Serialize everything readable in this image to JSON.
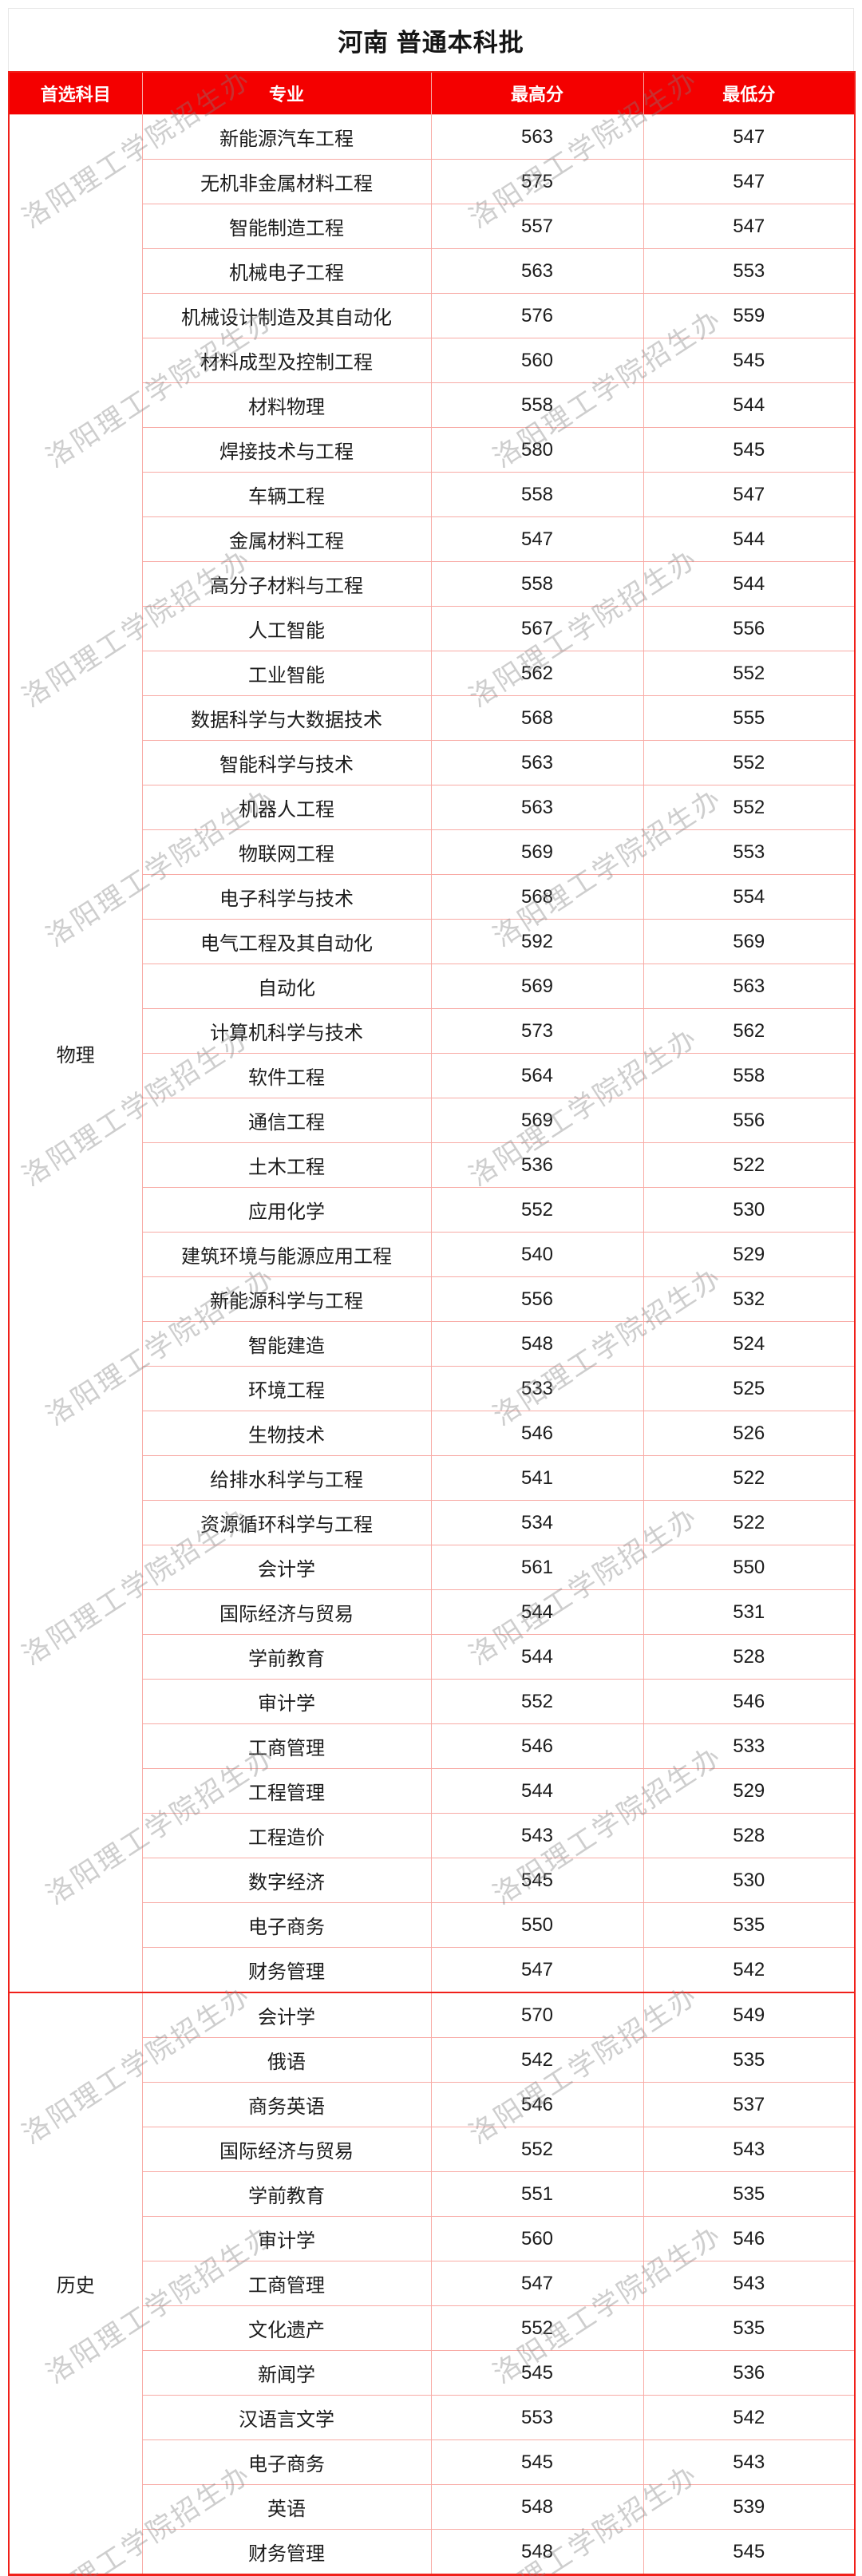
{
  "page": {
    "title": "河南 普通本科批",
    "watermark": "洛阳理工学院招生办"
  },
  "colors": {
    "header_bg": "#f40000",
    "header_text": "#ffffff",
    "grid_line": "#f8aba6",
    "outer_border": "#f0201a",
    "watermark": "#7d7d7d"
  },
  "table": {
    "columns": [
      "首选科目",
      "专业",
      "最高分",
      "最低分"
    ],
    "sections": [
      {
        "subject": "物理",
        "rows": [
          {
            "major": "新能源汽车工程",
            "max": "563",
            "min": "547"
          },
          {
            "major": "无机非金属材料工程",
            "max": "575",
            "min": "547"
          },
          {
            "major": "智能制造工程",
            "max": "557",
            "min": "547"
          },
          {
            "major": "机械电子工程",
            "max": "563",
            "min": "553"
          },
          {
            "major": "机械设计制造及其自动化",
            "max": "576",
            "min": "559"
          },
          {
            "major": "材料成型及控制工程",
            "max": "560",
            "min": "545"
          },
          {
            "major": "材料物理",
            "max": "558",
            "min": "544"
          },
          {
            "major": "焊接技术与工程",
            "max": "580",
            "min": "545"
          },
          {
            "major": "车辆工程",
            "max": "558",
            "min": "547"
          },
          {
            "major": "金属材料工程",
            "max": "547",
            "min": "544"
          },
          {
            "major": "高分子材料与工程",
            "max": "558",
            "min": "544"
          },
          {
            "major": "人工智能",
            "max": "567",
            "min": "556"
          },
          {
            "major": "工业智能",
            "max": "562",
            "min": "552"
          },
          {
            "major": "数据科学与大数据技术",
            "max": "568",
            "min": "555"
          },
          {
            "major": "智能科学与技术",
            "max": "563",
            "min": "552"
          },
          {
            "major": "机器人工程",
            "max": "563",
            "min": "552"
          },
          {
            "major": "物联网工程",
            "max": "569",
            "min": "553"
          },
          {
            "major": "电子科学与技术",
            "max": "568",
            "min": "554"
          },
          {
            "major": "电气工程及其自动化",
            "max": "592",
            "min": "569"
          },
          {
            "major": "自动化",
            "max": "569",
            "min": "563"
          },
          {
            "major": "计算机科学与技术",
            "max": "573",
            "min": "562"
          },
          {
            "major": "软件工程",
            "max": "564",
            "min": "558"
          },
          {
            "major": "通信工程",
            "max": "569",
            "min": "556"
          },
          {
            "major": "土木工程",
            "max": "536",
            "min": "522"
          },
          {
            "major": "应用化学",
            "max": "552",
            "min": "530"
          },
          {
            "major": "建筑环境与能源应用工程",
            "max": "540",
            "min": "529"
          },
          {
            "major": "新能源科学与工程",
            "max": "556",
            "min": "532"
          },
          {
            "major": "智能建造",
            "max": "548",
            "min": "524"
          },
          {
            "major": "环境工程",
            "max": "533",
            "min": "525"
          },
          {
            "major": "生物技术",
            "max": "546",
            "min": "526"
          },
          {
            "major": "给排水科学与工程",
            "max": "541",
            "min": "522"
          },
          {
            "major": "资源循环科学与工程",
            "max": "534",
            "min": "522"
          },
          {
            "major": "会计学",
            "max": "561",
            "min": "550"
          },
          {
            "major": "国际经济与贸易",
            "max": "544",
            "min": "531"
          },
          {
            "major": "学前教育",
            "max": "544",
            "min": "528"
          },
          {
            "major": "审计学",
            "max": "552",
            "min": "546"
          },
          {
            "major": "工商管理",
            "max": "546",
            "min": "533"
          },
          {
            "major": "工程管理",
            "max": "544",
            "min": "529"
          },
          {
            "major": "工程造价",
            "max": "543",
            "min": "528"
          },
          {
            "major": "数字经济",
            "max": "545",
            "min": "530"
          },
          {
            "major": "电子商务",
            "max": "550",
            "min": "535"
          },
          {
            "major": "财务管理",
            "max": "547",
            "min": "542"
          }
        ]
      },
      {
        "subject": "历史",
        "rows": [
          {
            "major": "会计学",
            "max": "570",
            "min": "549"
          },
          {
            "major": "俄语",
            "max": "542",
            "min": "535"
          },
          {
            "major": "商务英语",
            "max": "546",
            "min": "537"
          },
          {
            "major": "国际经济与贸易",
            "max": "552",
            "min": "543"
          },
          {
            "major": "学前教育",
            "max": "551",
            "min": "535"
          },
          {
            "major": "审计学",
            "max": "560",
            "min": "546"
          },
          {
            "major": "工商管理",
            "max": "547",
            "min": "543"
          },
          {
            "major": "文化遗产",
            "max": "552",
            "min": "535"
          },
          {
            "major": "新闻学",
            "max": "545",
            "min": "536"
          },
          {
            "major": "汉语言文学",
            "max": "553",
            "min": "542"
          },
          {
            "major": "电子商务",
            "max": "545",
            "min": "543"
          },
          {
            "major": "英语",
            "max": "548",
            "min": "539"
          },
          {
            "major": "财务管理",
            "max": "548",
            "min": "545"
          }
        ]
      }
    ]
  }
}
